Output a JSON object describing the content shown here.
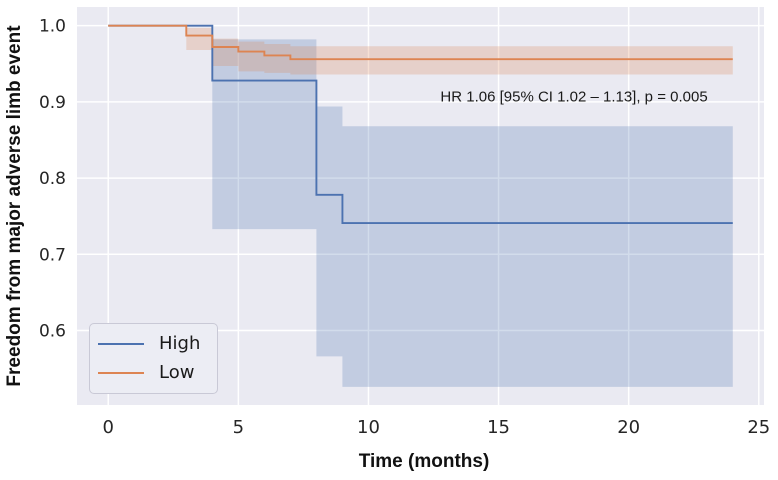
{
  "figure": {
    "background": "#ffffff",
    "plot_background": "#eaeaf2",
    "grid_color": "#ffffff",
    "tick_color": "#262626"
  },
  "chart_data": {
    "type": "line",
    "subtype": "kaplan-meier-step-with-ci-bands",
    "title": "",
    "xlabel": "Time (months)",
    "ylabel": "Freedom from major adverse limb event",
    "xlim": [
      -1.2,
      25.2
    ],
    "ylim": [
      0.5022,
      1.0245
    ],
    "grid": true,
    "legend_position": "lower-left",
    "xticks": [
      {
        "value": 0,
        "label": "0"
      },
      {
        "value": 5,
        "label": "5"
      },
      {
        "value": 10,
        "label": "10"
      },
      {
        "value": 15,
        "label": "15"
      },
      {
        "value": 20,
        "label": "20"
      },
      {
        "value": 25,
        "label": "25"
      }
    ],
    "yticks": [
      {
        "value": 0.6,
        "label": "0.6"
      },
      {
        "value": 0.7,
        "label": "0.7"
      },
      {
        "value": 0.8,
        "label": "0.8"
      },
      {
        "value": 0.9,
        "label": "0.9"
      },
      {
        "value": 1.0,
        "label": "1.0"
      }
    ],
    "annotation": {
      "text": "HR 1.06 [95% CI 1.02 – 1.13], p = 0.005",
      "x": 17.9,
      "y": 0.906
    },
    "series": [
      {
        "name": "High",
        "color": "#4c72b0",
        "band_alpha": 0.25,
        "step_x": [
          0,
          4,
          8,
          9,
          24
        ],
        "step_y": [
          1.0,
          0.928,
          0.778,
          0.741
        ],
        "ci": [
          {
            "t0": 4,
            "t1": 8,
            "lower": 0.733,
            "upper": 0.982
          },
          {
            "t0": 8,
            "t1": 9,
            "lower": 0.566,
            "upper": 0.894
          },
          {
            "t0": 9,
            "t1": 24,
            "lower": 0.526,
            "upper": 0.868
          }
        ]
      },
      {
        "name": "Low",
        "color": "#dd8452",
        "band_alpha": 0.25,
        "step_x": [
          0,
          3,
          4,
          5,
          6,
          7,
          24
        ],
        "step_y": [
          1.0,
          0.987,
          0.972,
          0.966,
          0.961,
          0.956
        ],
        "ci": [
          {
            "t0": 3,
            "t1": 4,
            "lower": 0.968,
            "upper": 0.997
          },
          {
            "t0": 4,
            "t1": 5,
            "lower": 0.947,
            "upper": 0.983
          },
          {
            "t0": 5,
            "t1": 6,
            "lower": 0.94,
            "upper": 0.979
          },
          {
            "t0": 6,
            "t1": 7,
            "lower": 0.938,
            "upper": 0.976
          },
          {
            "t0": 7,
            "t1": 24,
            "lower": 0.936,
            "upper": 0.973
          }
        ]
      }
    ],
    "legend": {
      "items": [
        {
          "label": "High",
          "color": "#4c72b0"
        },
        {
          "label": "Low",
          "color": "#dd8452"
        }
      ]
    }
  }
}
